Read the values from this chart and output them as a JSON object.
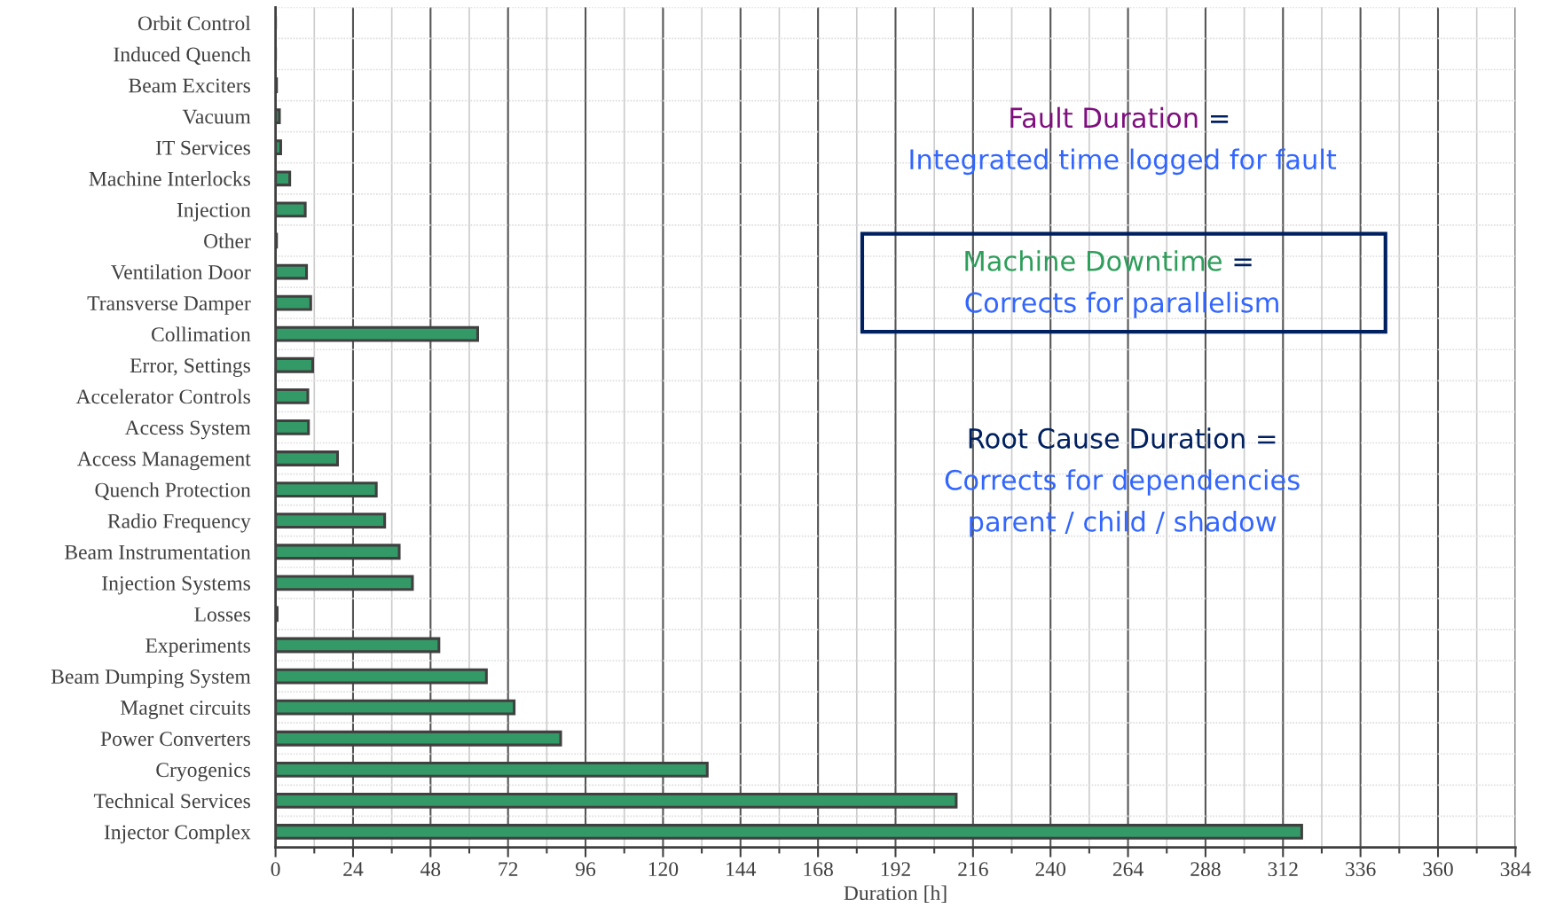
{
  "chart_data": {
    "type": "bar",
    "orientation": "horizontal",
    "xlabel": "Duration [h]",
    "categories": [
      "Orbit Control",
      "Induced Quench",
      "Beam Exciters",
      "Vacuum",
      "IT Services",
      "Machine Interlocks",
      "Injection",
      "Other",
      "Ventilation Door",
      "Transverse Damper",
      "Collimation",
      "Error, Settings",
      "Accelerator Controls",
      "Access System",
      "Access Management",
      "Quench Protection",
      "Radio Frequency",
      "Beam Instrumentation",
      "Injection Systems",
      "Losses",
      "Experiments",
      "Beam Dumping System",
      "Magnet circuits",
      "Power Converters",
      "Cryogenics",
      "Technical Services",
      "Injector Complex"
    ],
    "values": [
      0,
      0,
      0.3,
      1.2,
      1.6,
      4.4,
      9.2,
      0.3,
      9.6,
      10.9,
      62.6,
      11.5,
      10.0,
      10.2,
      19.2,
      31.2,
      33.8,
      38.3,
      42.4,
      0.5,
      50.6,
      65.3,
      73.9,
      88.3,
      133.7,
      210.8,
      317.8
    ],
    "color": "#339966",
    "xlim": [
      0,
      384
    ],
    "xticks": [
      0,
      24,
      48,
      72,
      96,
      120,
      144,
      168,
      192,
      216,
      240,
      264,
      288,
      312,
      336,
      360,
      384
    ],
    "grid": true,
    "annotations": [
      "Fault Duration",
      "=",
      "Integrated time logged for fault",
      "Machine Downtime",
      "=",
      "Corrects for parallelism",
      "Root Cause Duration =",
      "Corrects for dependencies",
      "parent / child / shadow"
    ]
  }
}
